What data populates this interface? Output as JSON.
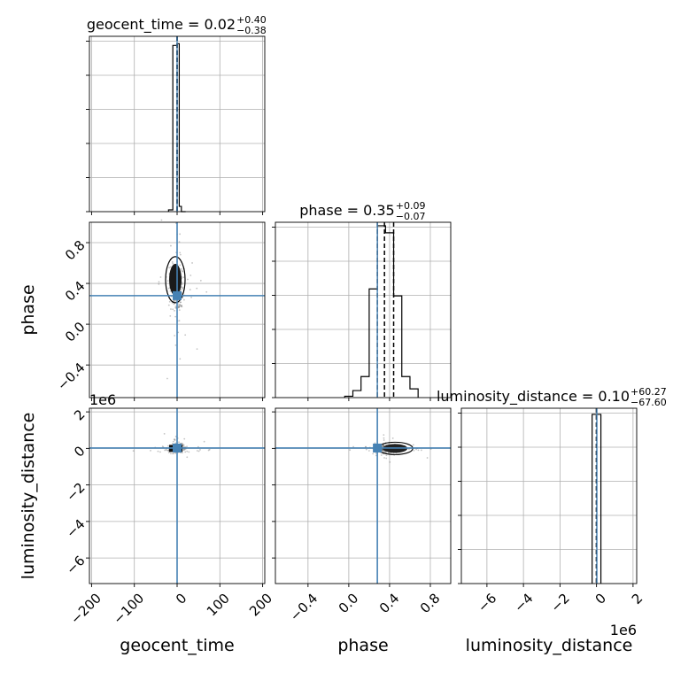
{
  "chart_data": {
    "type": "corner",
    "truth_color": "#4682b4",
    "hist_color": "#000000",
    "parameters": [
      {
        "name": "geocent_time",
        "title": {
          "main": "geocent_time = 0.02",
          "sup": "+0.40",
          "sub": "−0.38"
        },
        "range": [
          -205,
          205
        ],
        "ticks": [
          -200,
          -100,
          0,
          100,
          200
        ],
        "tick_labels": [
          "−200",
          "−100",
          "0",
          "100",
          "200"
        ],
        "truth": 0,
        "quantiles": [
          -0.36,
          0.02,
          0.42
        ],
        "hist_edges": [
          -20,
          -10,
          0,
          5,
          10,
          20
        ],
        "hist_counts": [
          0.01,
          0.948,
          0.958,
          0.03,
          0.0
        ]
      },
      {
        "name": "phase",
        "title": {
          "main": "phase = 0.35",
          "sup": "+0.09",
          "sub": "−0.07"
        },
        "range": [
          -0.72,
          1.0
        ],
        "ticks": [
          -0.4,
          0.0,
          0.4,
          0.8
        ],
        "tick_labels": [
          "−0.4",
          "0.0",
          "0.4",
          "0.8"
        ],
        "truth": 0.28,
        "quantiles": [
          0.28,
          0.35,
          0.44
        ],
        "hist_edges": [
          -0.04,
          0.04,
          0.12,
          0.2,
          0.28,
          0.36,
          0.44,
          0.52,
          0.6,
          0.68
        ],
        "hist_counts": [
          0.008,
          0.04,
          0.12,
          0.62,
          0.98,
          0.94,
          0.58,
          0.12,
          0.05
        ]
      },
      {
        "name": "luminosity_distance",
        "title": {
          "main": "luminosity_distance = 0.10",
          "sup": "+60.27",
          "sub": "−67.60"
        },
        "multiplier": "1e6",
        "range": [
          -7.4,
          2.2
        ],
        "ticks": [
          -6,
          -4,
          -2,
          0,
          2
        ],
        "tick_labels": [
          "−6",
          "−4",
          "−2",
          "0",
          "2"
        ],
        "truth": 0.02,
        "quantiles": [
          -6.8e-05,
          1e-07,
          6e-05
        ],
        "hist_edges": [
          -0.24,
          0,
          0.24
        ],
        "hist_counts": [
          0.965,
          0.965
        ]
      }
    ]
  }
}
